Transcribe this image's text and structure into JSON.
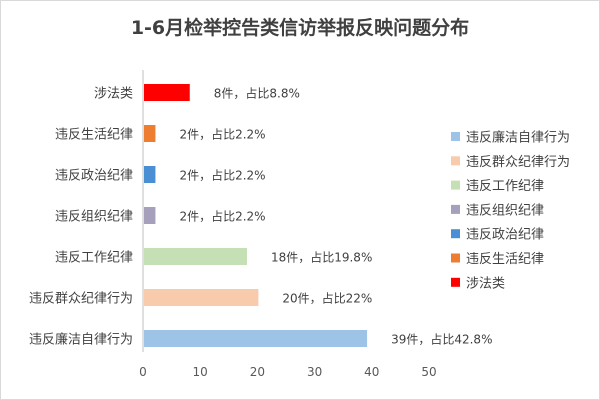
{
  "chart_data": {
    "type": "bar",
    "orientation": "horizontal",
    "title": "1-6月检举控告类信访举报反映问题分布",
    "categories": [
      "违反廉洁自律行为",
      "违反群众纪律行为",
      "违反工作纪律",
      "违反组织纪律",
      "违反政治纪律",
      "违反生活纪律",
      "涉法类"
    ],
    "values": [
      39,
      20,
      18,
      2,
      2,
      2,
      8
    ],
    "data_labels": [
      "39件，占比42.8%",
      "20件，占比22%",
      "18件，占比19.8%",
      "2件，占比2.2%",
      "2件，占比2.2%",
      "2件，占比2.2%",
      "8件，占比8.8%"
    ],
    "colors": [
      "#9dc3e6",
      "#f8cbad",
      "#c5e0b4",
      "#a6a0bd",
      "#4a8fd4",
      "#ed7d31",
      "#ff0000"
    ],
    "xlim": [
      0,
      50
    ],
    "xticks": [
      "0",
      "10",
      "20",
      "30",
      "40",
      "50"
    ],
    "xlabel": "",
    "ylabel": "",
    "grid": false,
    "legend_position": "right",
    "legend": [
      {
        "label": "违反廉洁自律行为",
        "color": "#9dc3e6"
      },
      {
        "label": "违反群众纪律行为",
        "color": "#f8cbad"
      },
      {
        "label": "违反工作纪律",
        "color": "#c5e0b4"
      },
      {
        "label": "违反组织纪律",
        "color": "#a6a0bd"
      },
      {
        "label": "违反政治纪律",
        "color": "#4a8fd4"
      },
      {
        "label": "违反生活纪律",
        "color": "#ed7d31"
      },
      {
        "label": "涉法类",
        "color": "#ff0000"
      }
    ]
  }
}
